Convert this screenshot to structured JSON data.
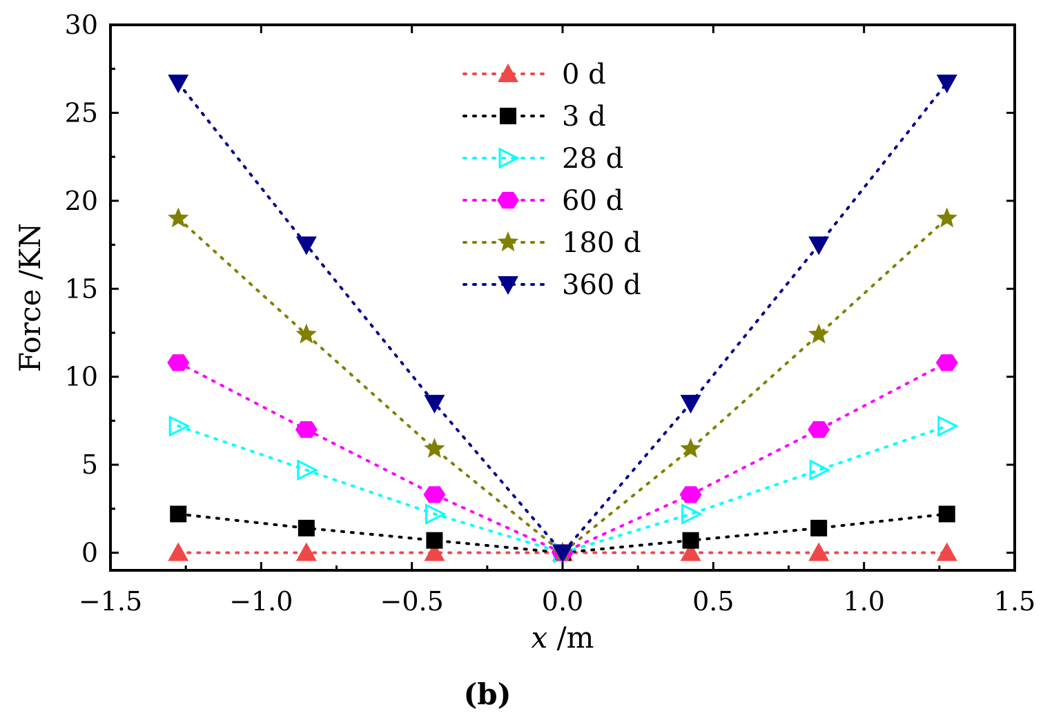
{
  "chart_data": {
    "type": "line",
    "title": "",
    "panel_label": "(b)",
    "xlabel_var": "x",
    "xlabel_unit": " /m",
    "ylabel": "Force /KN",
    "xlim": [
      -1.5,
      1.5
    ],
    "ylim": [
      -1,
      30
    ],
    "x_ticks": [
      -1.5,
      -1.0,
      -0.5,
      0.0,
      0.5,
      1.0,
      1.5
    ],
    "x_tick_labels": [
      "−1.5",
      "−1.0",
      "−0.5",
      "0.0",
      "0.5",
      "1.0",
      "1.5"
    ],
    "y_ticks": [
      0,
      5,
      10,
      15,
      20,
      25,
      30
    ],
    "y_tick_labels": [
      "0",
      "5",
      "10",
      "15",
      "20",
      "25",
      "30"
    ],
    "x": [
      -1.275,
      -0.85,
      -0.425,
      0.0,
      0.425,
      0.85,
      1.275
    ],
    "legend_position": "top-center",
    "series": [
      {
        "name": "0 d",
        "marker": "triangle-up",
        "color": "#f04848",
        "values": [
          0,
          0,
          0,
          0,
          0,
          0,
          0
        ]
      },
      {
        "name": "3 d",
        "marker": "square",
        "color": "#000000",
        "values": [
          2.2,
          1.4,
          0.7,
          0,
          0.7,
          1.4,
          2.2
        ]
      },
      {
        "name": "28 d",
        "marker": "triangle-right-open",
        "color": "#00ffff",
        "values": [
          7.2,
          4.7,
          2.2,
          0,
          2.2,
          4.7,
          7.2
        ]
      },
      {
        "name": "60 d",
        "marker": "hexagon",
        "color": "#ff00ff",
        "values": [
          10.8,
          7.0,
          3.3,
          0,
          3.3,
          7.0,
          10.8
        ]
      },
      {
        "name": "180 d",
        "marker": "star",
        "color": "#808000",
        "values": [
          19.0,
          12.4,
          5.9,
          0,
          5.9,
          12.4,
          19.0
        ]
      },
      {
        "name": "360 d",
        "marker": "triangle-down",
        "color": "#00008b",
        "values": [
          26.7,
          17.5,
          8.5,
          0,
          8.5,
          17.5,
          26.7
        ]
      }
    ]
  }
}
